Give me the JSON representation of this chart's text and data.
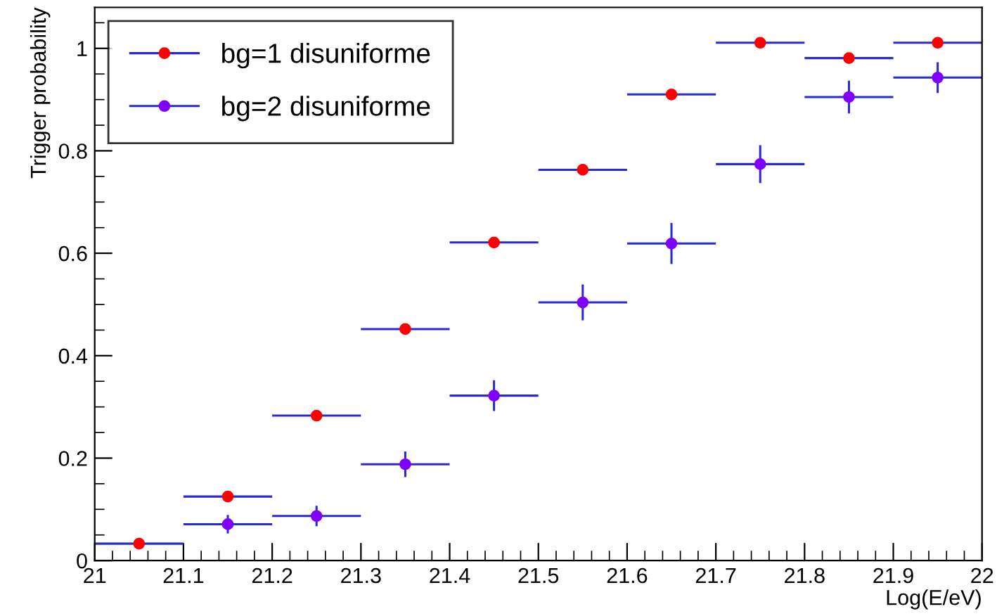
{
  "chart_data": {
    "type": "scatter",
    "xlabel": "Log(E/eV)",
    "ylabel": "Trigger probability",
    "xlim": [
      21,
      22
    ],
    "ylim": [
      0,
      1.08
    ],
    "xticks": [
      {
        "value": 21,
        "label": "21"
      },
      {
        "value": 21.1,
        "label": "21.1"
      },
      {
        "value": 21.2,
        "label": "21.2"
      },
      {
        "value": 21.3,
        "label": "21.3"
      },
      {
        "value": 21.4,
        "label": "21.4"
      },
      {
        "value": 21.5,
        "label": "21.5"
      },
      {
        "value": 21.6,
        "label": "21.6"
      },
      {
        "value": 21.7,
        "label": "21.7"
      },
      {
        "value": 21.8,
        "label": "21.8"
      },
      {
        "value": 21.9,
        "label": "21.9"
      },
      {
        "value": 22,
        "label": "22"
      }
    ],
    "yticks": [
      {
        "value": 0,
        "label": "0"
      },
      {
        "value": 0.2,
        "label": "0.2"
      },
      {
        "value": 0.4,
        "label": "0.4"
      },
      {
        "value": 0.6,
        "label": "0.6"
      },
      {
        "value": 0.8,
        "label": "0.8"
      },
      {
        "value": 1,
        "label": "1"
      }
    ],
    "marker": "circle",
    "grid": false,
    "legend": "top left",
    "series": [
      {
        "name": "bg=1 disuniforme",
        "color": "#ff0000",
        "x": [
          21.05,
          21.15,
          21.25,
          21.35,
          21.45,
          21.55,
          21.65,
          21.75,
          21.85,
          21.95
        ],
        "values": [
          0.033,
          0.125,
          0.283,
          0.452,
          0.621,
          0.763,
          0.91,
          1.011,
          0.981,
          1.011
        ],
        "xerrors": [
          0.05,
          0.05,
          0.05,
          0.05,
          0.05,
          0.05,
          0.05,
          0.05,
          0.05,
          0.05
        ]
      },
      {
        "name": "bg=2 disuniforme",
        "color": "#8000ff",
        "x": [
          21.15,
          21.25,
          21.35,
          21.45,
          21.55,
          21.65,
          21.75,
          21.85,
          21.95
        ],
        "values": [
          0.071,
          0.087,
          0.188,
          0.322,
          0.504,
          0.619,
          0.774,
          0.905,
          0.943
        ],
        "errors": [
          0.018,
          0.02,
          0.025,
          0.03,
          0.035,
          0.04,
          0.037,
          0.032,
          0.03
        ],
        "xerrors": [
          0.05,
          0.05,
          0.05,
          0.05,
          0.05,
          0.05,
          0.05,
          0.05,
          0.05
        ]
      }
    ]
  }
}
